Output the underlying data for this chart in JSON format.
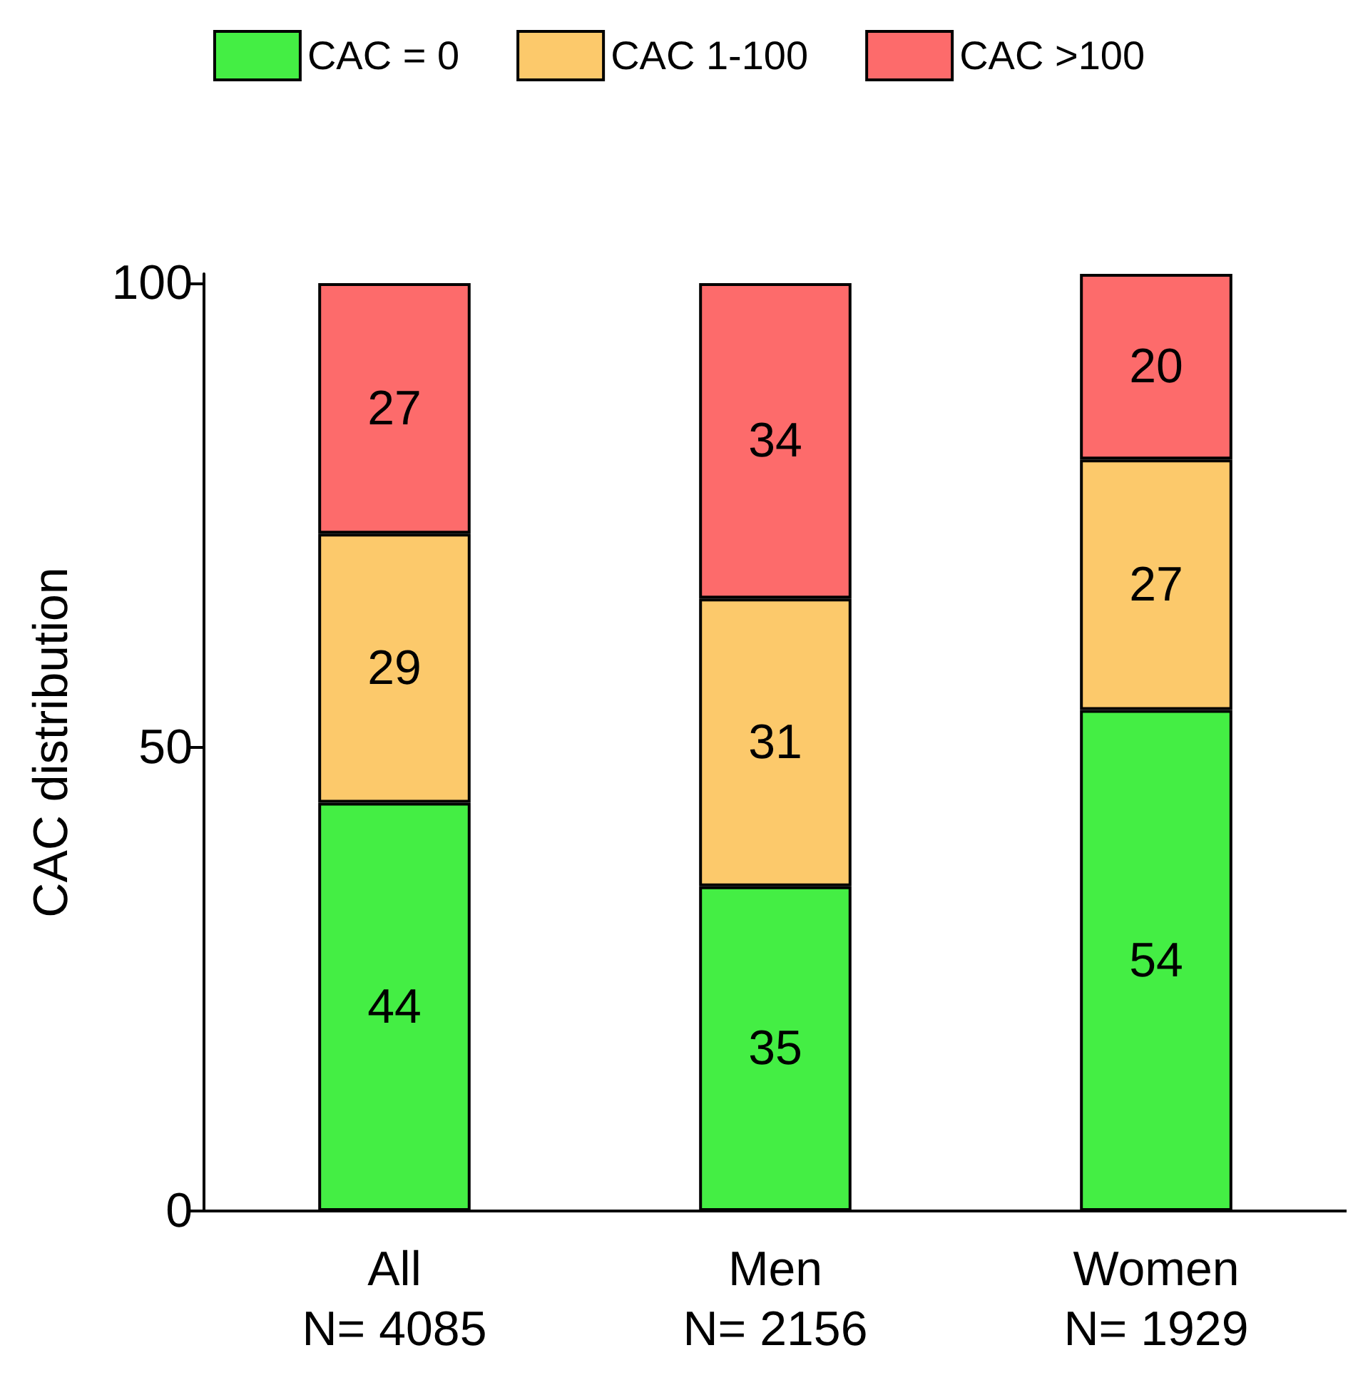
{
  "chart_data": {
    "type": "bar",
    "stacked": true,
    "ylabel": "CAC distribution",
    "categories": [
      "All\nN= 4085",
      "Men\nN= 2156",
      "Women\nN= 1929"
    ],
    "series": [
      {
        "name": "CAC = 0",
        "color": "#44ee44",
        "values": [
          44,
          35,
          54
        ]
      },
      {
        "name": "CAC 1-100",
        "color": "#fcc96b",
        "values": [
          29,
          31,
          27
        ]
      },
      {
        "name": "CAC >100",
        "color": "#fd6b6b",
        "values": [
          27,
          34,
          20
        ]
      }
    ],
    "ylim": [
      0,
      101
    ],
    "yticks": [
      0,
      50,
      100
    ],
    "grid": false,
    "legend": "top",
    "data_labels": true
  }
}
